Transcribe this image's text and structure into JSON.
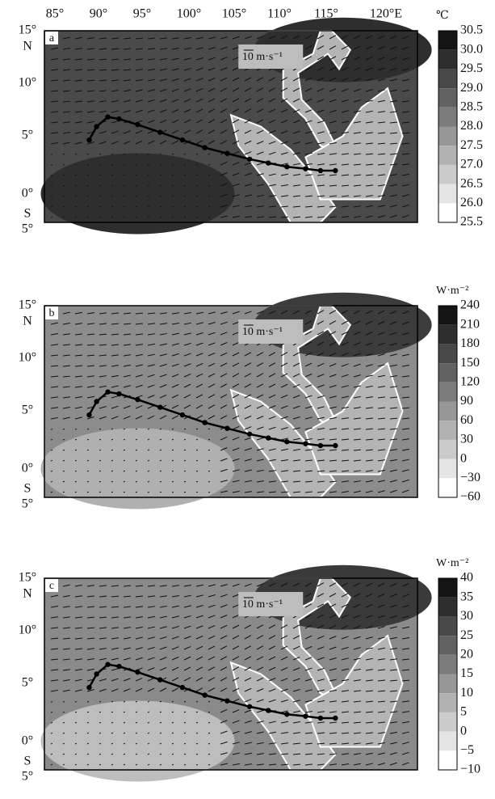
{
  "x_labels": [
    "85°",
    "90°",
    "95°",
    "100°",
    "105°",
    "110°",
    "115°",
    "120°E"
  ],
  "panels": [
    {
      "label": "a",
      "y_labels": [
        "15°",
        "N",
        "10°",
        "5°",
        "0°",
        "S",
        "5°"
      ],
      "wind_scale": "10 m·s⁻¹",
      "colorbar": {
        "unit": "℃",
        "ticks": [
          "30.5",
          "30.0",
          "29.5",
          "29.0",
          "28.5",
          "28.0",
          "27.5",
          "27.0",
          "26.5",
          "26.0",
          "25.5"
        ]
      }
    },
    {
      "label": "b",
      "y_labels": [
        "15°",
        "N",
        "10°",
        "5°",
        "0°",
        "S",
        "5°"
      ],
      "wind_scale": "10 m·s⁻¹",
      "colorbar": {
        "unit": "W·m⁻²",
        "ticks": [
          "240",
          "210",
          "180",
          "150",
          "120",
          "90",
          "60",
          "30",
          "0",
          "−30",
          "−60"
        ]
      }
    },
    {
      "label": "c",
      "y_labels": [
        "15°",
        "N",
        "10°",
        "5°",
        "0°",
        "S",
        "5°"
      ],
      "wind_scale": "10 m·s⁻¹",
      "colorbar": {
        "unit": "W·m⁻²",
        "ticks": [
          "40",
          "35",
          "30",
          "25",
          "20",
          "15",
          "10",
          "5",
          "0",
          "−5",
          "−10"
        ]
      }
    }
  ]
}
